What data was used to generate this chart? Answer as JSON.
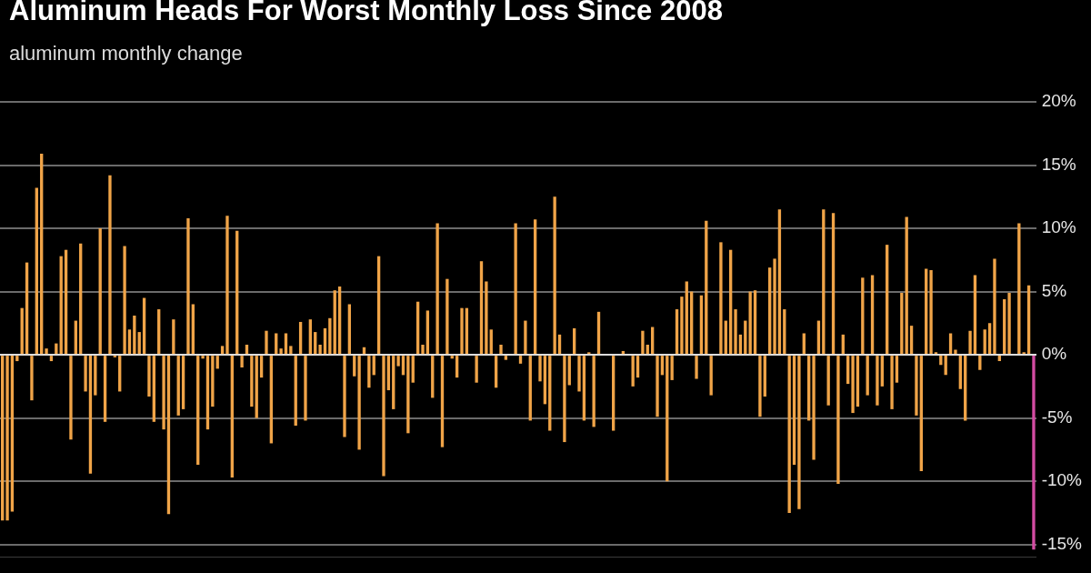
{
  "chart_data": {
    "type": "bar",
    "title": "Aluminum Heads For Worst Monthly Loss Since 2008",
    "subtitle": "aluminum monthly change",
    "categories": [
      null,
      null,
      null,
      null,
      null,
      null,
      null,
      null,
      null,
      null,
      null,
      null,
      null,
      null,
      null,
      null,
      null,
      null,
      null,
      null,
      null,
      null,
      null,
      null,
      null,
      null,
      null,
      null,
      null,
      null,
      null,
      null,
      null,
      null,
      null,
      null,
      null,
      null,
      null,
      null,
      null,
      null,
      null,
      null,
      null,
      null,
      null,
      null,
      null,
      null,
      null,
      null,
      null,
      null,
      null,
      null,
      null,
      null,
      null,
      null,
      null,
      null,
      null,
      null,
      null,
      null,
      null,
      null,
      null,
      null,
      null,
      null,
      null,
      null,
      null,
      null,
      null,
      null,
      null,
      null,
      null,
      null,
      null,
      null,
      null,
      null,
      null,
      null,
      null,
      null,
      null,
      null,
      null,
      null,
      null,
      null,
      null,
      null,
      null,
      null,
      null,
      null,
      null,
      null,
      null,
      null,
      null,
      null,
      null,
      null,
      null,
      null,
      null,
      null,
      null,
      null,
      null,
      null,
      null,
      null,
      null,
      null,
      null,
      null,
      null,
      null,
      null,
      null,
      null,
      null,
      null,
      null,
      null,
      null,
      null,
      null,
      null,
      null,
      null,
      null,
      null,
      null,
      null,
      null,
      null,
      null,
      null,
      null,
      null,
      null,
      null,
      null,
      null,
      null,
      null,
      null,
      null,
      null,
      null,
      null,
      null,
      null,
      null,
      null,
      null,
      null,
      null,
      null,
      null,
      null,
      null,
      null,
      null,
      null,
      null,
      null,
      null,
      null,
      null,
      null,
      null,
      null,
      null,
      null,
      null,
      null,
      null,
      null,
      null,
      null,
      null,
      null,
      null,
      null,
      null,
      null,
      null,
      null,
      null,
      null,
      null,
      null,
      null,
      null,
      null,
      null,
      null,
      null,
      null,
      null,
      null,
      null
    ],
    "values": [
      -13.1,
      -13.1,
      -12.4,
      -0.5,
      3.7,
      7.3,
      -3.6,
      13.2,
      15.9,
      0.5,
      -0.5,
      0.9,
      7.8,
      8.3,
      -6.7,
      2.7,
      8.8,
      -2.9,
      -9.4,
      -3.2,
      10.0,
      -5.3,
      14.2,
      -0.2,
      -2.9,
      8.6,
      2.0,
      3.1,
      1.8,
      4.5,
      -3.3,
      -5.3,
      3.6,
      -5.9,
      -12.6,
      2.8,
      -4.8,
      -4.3,
      10.8,
      4.0,
      -8.7,
      -0.3,
      -5.9,
      -4.1,
      -1.1,
      0.7,
      11.0,
      -9.7,
      9.8,
      -1.0,
      0.8,
      -4.1,
      -5.0,
      -1.8,
      1.9,
      -7.0,
      1.7,
      0.5,
      1.7,
      0.7,
      -5.6,
      2.6,
      -5.2,
      2.8,
      1.8,
      0.8,
      2.1,
      2.9,
      5.1,
      5.4,
      -6.5,
      4.0,
      -1.7,
      -7.5,
      0.6,
      -2.6,
      -1.6,
      7.8,
      -9.6,
      -2.8,
      -4.3,
      -0.9,
      -1.6,
      -6.2,
      -2.2,
      4.2,
      0.8,
      3.5,
      -3.4,
      10.4,
      -7.3,
      6.0,
      -0.3,
      -1.8,
      3.7,
      3.7,
      0,
      -2.2,
      7.4,
      5.8,
      2.0,
      -2.6,
      0.8,
      -0.4,
      0,
      10.4,
      -0.7,
      2.7,
      -5.2,
      10.7,
      -2.1,
      -3.9,
      -6.0,
      12.5,
      1.6,
      -6.9,
      -2.4,
      2.1,
      -2.9,
      -5.2,
      0.2,
      -5.7,
      3.4,
      0,
      0,
      -6.0,
      0,
      0.3,
      0,
      -2.5,
      -1.8,
      1.9,
      0.8,
      2.2,
      -4.9,
      -1.6,
      -10.0,
      -2.0,
      3.6,
      4.6,
      5.8,
      5.0,
      -1.9,
      4.7,
      10.6,
      -3.2,
      0,
      8.9,
      2.7,
      8.3,
      3.6,
      1.6,
      2.7,
      5.0,
      5.1,
      -4.9,
      -3.3,
      6.9,
      7.6,
      11.5,
      3.6,
      -12.5,
      -8.7,
      -12.2,
      1.7,
      -5.2,
      -8.3,
      2.7,
      11.5,
      -4.0,
      11.2,
      -10.2,
      1.6,
      -2.3,
      -4.6,
      -4.1,
      6.1,
      -3.2,
      6.3,
      -4.0,
      -2.5,
      8.7,
      -4.3,
      -2.2,
      4.9,
      10.9,
      2.3,
      -4.8,
      -9.2,
      6.8,
      6.7,
      0.2,
      -0.8,
      -1.6,
      1.7,
      0.4,
      -2.7,
      -5.2,
      1.9,
      6.3,
      -1.2,
      2.0,
      2.5,
      7.6,
      -0.5,
      4.4,
      4.9,
      0,
      10.4,
      0.2,
      5.5,
      -15.4
    ],
    "colors": [
      "#f0a448",
      "#f0a448",
      "#f0a448",
      "#f0a448",
      "#f0a448",
      "#f0a448",
      "#f0a448",
      "#f0a448",
      "#f0a448",
      "#f0a448",
      "#f0a448",
      "#f0a448",
      "#f0a448",
      "#f0a448",
      "#f0a448",
      "#f0a448",
      "#f0a448",
      "#f0a448",
      "#f0a448",
      "#f0a448",
      "#f0a448",
      "#f0a448",
      "#f0a448",
      "#f0a448",
      "#f0a448",
      "#f0a448",
      "#f0a448",
      "#f0a448",
      "#f0a448",
      "#f0a448",
      "#f0a448",
      "#f0a448",
      "#f0a448",
      "#f0a448",
      "#f0a448",
      "#f0a448",
      "#f0a448",
      "#f0a448",
      "#f0a448",
      "#f0a448",
      "#f0a448",
      "#f0a448",
      "#f0a448",
      "#f0a448",
      "#f0a448",
      "#f0a448",
      "#f0a448",
      "#f0a448",
      "#f0a448",
      "#f0a448",
      "#f0a448",
      "#f0a448",
      "#f0a448",
      "#f0a448",
      "#f0a448",
      "#f0a448",
      "#f0a448",
      "#f0a448",
      "#f0a448",
      "#f0a448",
      "#f0a448",
      "#f0a448",
      "#f0a448",
      "#f0a448",
      "#f0a448",
      "#f0a448",
      "#f0a448",
      "#f0a448",
      "#f0a448",
      "#f0a448",
      "#f0a448",
      "#f0a448",
      "#f0a448",
      "#f0a448",
      "#f0a448",
      "#f0a448",
      "#f0a448",
      "#f0a448",
      "#f0a448",
      "#f0a448",
      "#f0a448",
      "#f0a448",
      "#f0a448",
      "#f0a448",
      "#f0a448",
      "#f0a448",
      "#f0a448",
      "#f0a448",
      "#f0a448",
      "#f0a448",
      "#f0a448",
      "#f0a448",
      "#f0a448",
      "#f0a448",
      "#f0a448",
      "#f0a448",
      "#f0a448",
      "#f0a448",
      "#f0a448",
      "#f0a448",
      "#f0a448",
      "#f0a448",
      "#f0a448",
      "#f0a448",
      "#f0a448",
      "#f0a448",
      "#f0a448",
      "#f0a448",
      "#f0a448",
      "#f0a448",
      "#f0a448",
      "#f0a448",
      "#f0a448",
      "#f0a448",
      "#f0a448",
      "#f0a448",
      "#f0a448",
      "#f0a448",
      "#f0a448",
      "#f0a448",
      "#f0a448",
      "#f0a448",
      "#f0a448",
      "#f0a448",
      "#f0a448",
      "#f0a448",
      "#f0a448",
      "#f0a448",
      "#f0a448",
      "#f0a448",
      "#f0a448",
      "#f0a448",
      "#f0a448",
      "#f0a448",
      "#f0a448",
      "#f0a448",
      "#f0a448",
      "#f0a448",
      "#f0a448",
      "#f0a448",
      "#f0a448",
      "#f0a448",
      "#f0a448",
      "#f0a448",
      "#f0a448",
      "#f0a448",
      "#f0a448",
      "#f0a448",
      "#f0a448",
      "#f0a448",
      "#f0a448",
      "#f0a448",
      "#f0a448",
      "#f0a448",
      "#f0a448",
      "#f0a448",
      "#f0a448",
      "#f0a448",
      "#f0a448",
      "#f0a448",
      "#f0a448",
      "#f0a448",
      "#f0a448",
      "#f0a448",
      "#f0a448",
      "#f0a448",
      "#f0a448",
      "#f0a448",
      "#f0a448",
      "#f0a448",
      "#f0a448",
      "#f0a448",
      "#f0a448",
      "#f0a448",
      "#f0a448",
      "#f0a448",
      "#f0a448",
      "#f0a448",
      "#f0a448",
      "#f0a448",
      "#f0a448",
      "#f0a448",
      "#f0a448",
      "#f0a448",
      "#f0a448",
      "#f0a448",
      "#f0a448",
      "#f0a448",
      "#f0a448",
      "#f0a448",
      "#f0a448",
      "#f0a448",
      "#f0a448",
      "#f0a448",
      "#f0a448",
      "#f0a448",
      "#f0a448",
      "#f0a448",
      "#f0a448",
      "#f0a448",
      "#f0a448",
      "#f0a448",
      "#f0a448",
      "#f0a448",
      "#f0a448",
      "#f0a448",
      "#f0a448",
      "#f0a448",
      "#f0a448",
      "#f0a448",
      "#f0a448",
      "#d34ca3"
    ],
    "ylim": [
      -16,
      20
    ],
    "yticks": [
      {
        "value": 20,
        "label": "20%"
      },
      {
        "value": 15,
        "label": "15%"
      },
      {
        "value": 10,
        "label": "10%"
      },
      {
        "value": 5,
        "label": "5%"
      },
      {
        "value": 0,
        "label": "0%"
      },
      {
        "value": -5,
        "label": "-5%"
      },
      {
        "value": -10,
        "label": "-10%"
      },
      {
        "value": -15,
        "label": "-15%"
      }
    ],
    "grid": "y",
    "tick_labels": "y"
  }
}
